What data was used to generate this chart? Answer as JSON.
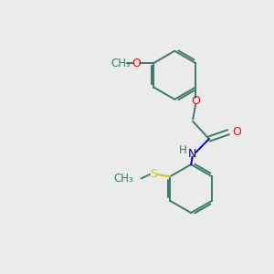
{
  "background_color": "#ebebeb",
  "bond_color": "#3a7a6e",
  "atom_colors": {
    "O": "#ff0000",
    "N": "#0000cc",
    "S": "#cccc00",
    "C": "#2d6e6e",
    "H": "#2d6e6e"
  },
  "figsize": [
    3.0,
    3.0
  ],
  "dpi": 100,
  "lw": 1.4
}
